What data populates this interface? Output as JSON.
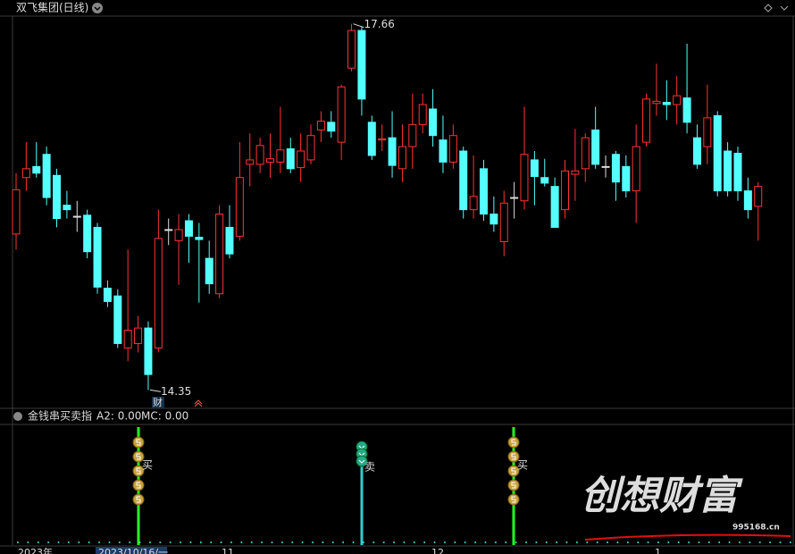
{
  "title": "双飞集团(日线)",
  "chart_data": {
    "type": "candlestick",
    "ylim": [
      14.2,
      17.73
    ],
    "high_label": 17.66,
    "low_label": 14.35,
    "ohlc": [
      [
        15.76,
        16.31,
        15.62,
        16.16
      ],
      [
        16.27,
        16.59,
        16.15,
        16.35
      ],
      [
        16.37,
        16.59,
        16.27,
        16.31
      ],
      [
        16.48,
        16.55,
        16.02,
        16.09
      ],
      [
        16.29,
        16.35,
        15.82,
        15.9
      ],
      [
        16.02,
        16.15,
        15.9,
        15.98
      ],
      [
        15.92,
        16.06,
        15.78,
        15.92
      ],
      [
        15.93,
        15.98,
        15.54,
        15.6
      ],
      [
        15.82,
        15.86,
        15.22,
        15.28
      ],
      [
        15.27,
        15.34,
        15.1,
        15.15
      ],
      [
        15.2,
        15.26,
        14.73,
        14.77
      ],
      [
        14.73,
        15.62,
        14.61,
        14.89
      ],
      [
        14.77,
        15.02,
        14.69,
        14.91
      ],
      [
        14.91,
        14.97,
        14.35,
        14.49
      ],
      [
        14.73,
        15.98,
        14.69,
        15.72
      ],
      [
        15.8,
        15.9,
        15.66,
        15.8
      ],
      [
        15.7,
        15.94,
        15.3,
        15.8
      ],
      [
        15.88,
        15.94,
        15.5,
        15.74
      ],
      [
        15.73,
        15.86,
        15.14,
        15.71
      ],
      [
        15.54,
        15.7,
        15.22,
        15.31
      ],
      [
        15.22,
        16.02,
        15.18,
        15.94
      ],
      [
        15.82,
        16.02,
        15.54,
        15.58
      ],
      [
        15.74,
        16.59,
        15.7,
        16.27
      ],
      [
        16.39,
        16.67,
        16.19,
        16.43
      ],
      [
        16.39,
        16.63,
        16.31,
        16.56
      ],
      [
        16.41,
        16.67,
        16.27,
        16.44
      ],
      [
        16.41,
        16.91,
        16.31,
        16.52
      ],
      [
        16.53,
        16.63,
        16.31,
        16.35
      ],
      [
        16.36,
        16.67,
        16.23,
        16.51
      ],
      [
        16.43,
        16.75,
        16.39,
        16.65
      ],
      [
        16.7,
        16.87,
        16.59,
        16.78
      ],
      [
        16.77,
        16.87,
        16.63,
        16.69
      ],
      [
        16.59,
        17.11,
        16.43,
        17.09
      ],
      [
        17.26,
        17.66,
        17.23,
        17.6
      ],
      [
        17.6,
        17.64,
        16.83,
        16.98
      ],
      [
        16.77,
        16.83,
        16.43,
        16.47
      ],
      [
        16.61,
        16.75,
        16.51,
        16.62
      ],
      [
        16.63,
        16.87,
        16.27,
        16.38
      ],
      [
        16.35,
        16.75,
        16.23,
        16.55
      ],
      [
        16.55,
        17.03,
        16.35,
        16.75
      ],
      [
        16.75,
        17.03,
        16.67,
        16.93
      ],
      [
        16.89,
        17.07,
        16.55,
        16.65
      ],
      [
        16.61,
        16.83,
        16.31,
        16.41
      ],
      [
        16.41,
        16.75,
        16.35,
        16.65
      ],
      [
        16.51,
        16.55,
        15.9,
        15.98
      ],
      [
        15.98,
        16.47,
        15.9,
        16.1
      ],
      [
        16.35,
        16.43,
        15.88,
        15.94
      ],
      [
        15.94,
        16.1,
        15.78,
        15.85
      ],
      [
        15.69,
        16.15,
        15.56,
        16.04
      ],
      [
        16.09,
        16.23,
        15.9,
        16.09
      ],
      [
        16.06,
        16.91,
        15.98,
        16.48
      ],
      [
        16.43,
        16.51,
        16.02,
        16.28
      ],
      [
        16.27,
        16.44,
        16.19,
        16.22
      ],
      [
        16.19,
        16.27,
        15.82,
        15.82
      ],
      [
        15.98,
        16.43,
        15.9,
        16.33
      ],
      [
        16.3,
        16.71,
        16.06,
        16.33
      ],
      [
        16.35,
        16.67,
        16.23,
        16.63
      ],
      [
        16.7,
        16.91,
        16.35,
        16.39
      ],
      [
        16.37,
        16.47,
        16.27,
        16.37
      ],
      [
        16.48,
        16.51,
        16.06,
        16.23
      ],
      [
        16.37,
        16.47,
        16.09,
        16.15
      ],
      [
        16.15,
        16.75,
        15.86,
        16.55
      ],
      [
        16.59,
        17.03,
        16.55,
        16.98
      ],
      [
        16.94,
        17.3,
        16.83,
        16.96
      ],
      [
        16.95,
        17.15,
        16.79,
        16.93
      ],
      [
        16.93,
        17.19,
        16.75,
        17.01
      ],
      [
        16.99,
        17.48,
        16.67,
        16.77
      ],
      [
        16.63,
        16.75,
        16.35,
        16.39
      ],
      [
        16.55,
        17.11,
        16.39,
        16.81
      ],
      [
        16.83,
        16.87,
        16.1,
        16.15
      ],
      [
        16.51,
        16.59,
        16.1,
        16.15
      ],
      [
        16.49,
        16.55,
        16.06,
        16.15
      ],
      [
        16.15,
        16.27,
        15.9,
        15.98
      ],
      [
        16.01,
        16.23,
        15.7,
        16.19
      ]
    ],
    "up_color": "#ff3232",
    "down_color": "#54ffff"
  },
  "marker": "财",
  "indicator": {
    "name": "金钱串买卖指",
    "a2": "A2: 0.00",
    "mc": "MC: 0.00",
    "signals": [
      "买",
      "卖",
      "买"
    ]
  },
  "x_labels": [
    "2023年",
    "2023/10/16/一",
    "11",
    "12",
    "1"
  ],
  "watermark": {
    "text": "创想财富",
    "site": "995168.cn"
  }
}
